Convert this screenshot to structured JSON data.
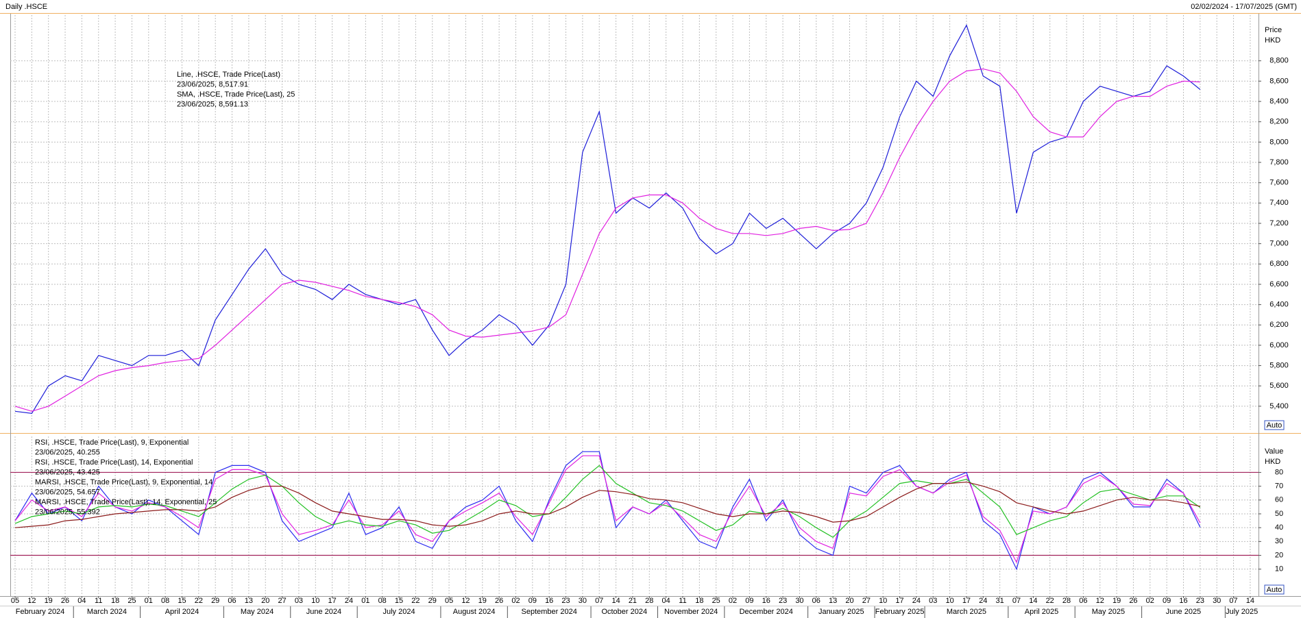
{
  "header": {
    "title": "Daily .HSCE",
    "range": "02/02/2024 - 17/07/2025 (GMT)"
  },
  "x_axis": {
    "groups": [
      {
        "label": "February 2024",
        "categories": [
          "05",
          "12",
          "19",
          "26"
        ]
      },
      {
        "label": "March 2024",
        "categories": [
          "04",
          "11",
          "18",
          "25"
        ]
      },
      {
        "label": "April 2024",
        "categories": [
          "01",
          "08",
          "15",
          "22",
          "29"
        ]
      },
      {
        "label": "May 2024",
        "categories": [
          "06",
          "13",
          "20",
          "27"
        ]
      },
      {
        "label": "June 2024",
        "categories": [
          "03",
          "10",
          "17",
          "24"
        ]
      },
      {
        "label": "July 2024",
        "categories": [
          "01",
          "08",
          "15",
          "22",
          "29"
        ]
      },
      {
        "label": "August 2024",
        "categories": [
          "05",
          "12",
          "19",
          "26"
        ]
      },
      {
        "label": "September 2024",
        "categories": [
          "02",
          "09",
          "16",
          "23",
          "30"
        ]
      },
      {
        "label": "October 2024",
        "categories": [
          "07",
          "14",
          "21",
          "28"
        ]
      },
      {
        "label": "November 2024",
        "categories": [
          "04",
          "11",
          "18",
          "25"
        ]
      },
      {
        "label": "December 2024",
        "categories": [
          "02",
          "09",
          "16",
          "23",
          "30"
        ]
      },
      {
        "label": "January 2025",
        "categories": [
          "06",
          "13",
          "20",
          "27"
        ]
      },
      {
        "label": "February 2025",
        "categories": [
          "10",
          "17",
          "24"
        ]
      },
      {
        "label": "March 2025",
        "categories": [
          "03",
          "10",
          "17",
          "24",
          "31"
        ]
      },
      {
        "label": "April 2025",
        "categories": [
          "07",
          "14",
          "22",
          "28"
        ]
      },
      {
        "label": "May 2025",
        "categories": [
          "06",
          "12",
          "19",
          "26"
        ]
      },
      {
        "label": "June 2025",
        "categories": [
          "02",
          "09",
          "16",
          "23",
          "30"
        ]
      },
      {
        "label": "July 2025",
        "categories": [
          "07",
          "14"
        ]
      }
    ]
  },
  "chart_data": [
    {
      "type": "line",
      "y_axis_label": "Price",
      "y_axis_unit": "HKD",
      "scale_button": "Auto",
      "ylim": [
        5170,
        9250
      ],
      "yticks": [
        {
          "value": 5400,
          "label": "5,400"
        },
        {
          "value": 5600,
          "label": "5,600"
        },
        {
          "value": 5800,
          "label": "5,800"
        },
        {
          "value": 6000,
          "label": "6,000"
        },
        {
          "value": 6200,
          "label": "6,200"
        },
        {
          "value": 6400,
          "label": "6,400"
        },
        {
          "value": 6600,
          "label": "6,600"
        },
        {
          "value": 6800,
          "label": "6,800"
        },
        {
          "value": 7000,
          "label": "7,000"
        },
        {
          "value": 7200,
          "label": "7,200"
        },
        {
          "value": 7400,
          "label": "7,400"
        },
        {
          "value": 7600,
          "label": "7,600"
        },
        {
          "value": 7800,
          "label": "7,800"
        },
        {
          "value": 8000,
          "label": "8,000"
        },
        {
          "value": 8200,
          "label": "8,200"
        },
        {
          "value": 8400,
          "label": "8,400"
        },
        {
          "value": 8600,
          "label": "8,600"
        },
        {
          "value": 8800,
          "label": "8,800"
        }
      ],
      "grid": true,
      "series": [
        {
          "name": "Line, .HSCE, Trade Price(Last)",
          "legend_detail": "23/06/2025, 8,517.91",
          "color": "#1c1cd8",
          "values": [
            5350,
            5330,
            5600,
            5700,
            5650,
            5900,
            5850,
            5800,
            5900,
            5900,
            5950,
            5800,
            6250,
            6500,
            6750,
            6950,
            6700,
            6600,
            6550,
            6450,
            6600,
            6500,
            6450,
            6400,
            6450,
            6150,
            5900,
            6050,
            6150,
            6300,
            6200,
            6000,
            6200,
            6600,
            7900,
            8300,
            7300,
            7450,
            7350,
            7500,
            7350,
            7050,
            6900,
            7000,
            7300,
            7150,
            7250,
            7100,
            6950,
            7100,
            7200,
            7400,
            7750,
            8250,
            8600,
            8450,
            8850,
            9150,
            8650,
            8550,
            7300,
            7900,
            8000,
            8050,
            8400,
            8550,
            8500,
            8450,
            8500,
            8750,
            8650,
            8517.91,
            null,
            null,
            null
          ]
        },
        {
          "name": "SMA, .HSCE, Trade Price(Last),  25",
          "legend_detail": "23/06/2025, 8,591.13",
          "color": "#e020e0",
          "values": [
            5400,
            5350,
            5400,
            5500,
            5600,
            5700,
            5750,
            5780,
            5800,
            5830,
            5850,
            5870,
            6000,
            6150,
            6300,
            6450,
            6600,
            6640,
            6620,
            6580,
            6540,
            6480,
            6450,
            6420,
            6380,
            6300,
            6150,
            6090,
            6080,
            6100,
            6120,
            6140,
            6180,
            6300,
            6700,
            7100,
            7350,
            7450,
            7480,
            7480,
            7400,
            7250,
            7150,
            7100,
            7100,
            7080,
            7100,
            7150,
            7170,
            7130,
            7140,
            7200,
            7500,
            7850,
            8150,
            8400,
            8600,
            8700,
            8720,
            8680,
            8500,
            8250,
            8100,
            8050,
            8050,
            8250,
            8400,
            8450,
            8450,
            8550,
            8600,
            8591.13,
            null,
            null,
            null
          ]
        }
      ]
    },
    {
      "type": "line",
      "y_axis_label": "Value",
      "y_axis_unit": "HKD",
      "scale_button": "Auto",
      "ylim": [
        -8,
        106
      ],
      "yticks": [
        10,
        20,
        30,
        40,
        50,
        60,
        70,
        80
      ],
      "reference_lines": [
        80,
        20
      ],
      "grid": true,
      "series": [
        {
          "name": "RSI, .HSCE, Trade Price(Last),  9, Exponential",
          "legend_detail": "23/06/2025, 40.255",
          "color": "#2a2af0",
          "values": [
            45,
            65,
            50,
            55,
            45,
            70,
            55,
            50,
            60,
            55,
            45,
            35,
            80,
            85,
            85,
            80,
            45,
            30,
            35,
            40,
            65,
            35,
            40,
            55,
            30,
            25,
            45,
            55,
            60,
            70,
            45,
            30,
            60,
            85,
            95,
            95,
            40,
            55,
            50,
            60,
            45,
            30,
            25,
            55,
            75,
            45,
            60,
            35,
            25,
            20,
            70,
            65,
            80,
            85,
            70,
            65,
            75,
            80,
            45,
            35,
            10,
            55,
            50,
            55,
            75,
            80,
            70,
            55,
            55,
            75,
            65,
            40.255,
            null,
            null,
            null
          ]
        },
        {
          "name": "RSI, .HSCE, Trade Price(Last),  14, Exponential",
          "legend_detail": "23/06/2025, 43.425",
          "color": "#e020e0",
          "values": [
            45,
            60,
            52,
            55,
            48,
            65,
            55,
            52,
            58,
            55,
            48,
            40,
            75,
            82,
            82,
            78,
            50,
            35,
            38,
            42,
            60,
            40,
            42,
            52,
            35,
            30,
            45,
            52,
            58,
            65,
            48,
            35,
            58,
            82,
            92,
            92,
            45,
            55,
            50,
            58,
            47,
            35,
            30,
            52,
            70,
            48,
            58,
            40,
            30,
            25,
            65,
            63,
            77,
            82,
            70,
            65,
            73,
            78,
            48,
            38,
            15,
            52,
            50,
            55,
            72,
            78,
            70,
            57,
            56,
            72,
            65,
            43.425,
            null,
            null,
            null
          ]
        },
        {
          "name": "MARSI, .HSCE, Trade Price(Last),  9, Exponential, 14",
          "legend_detail": "23/06/2025, 54.657",
          "color": "#22c022",
          "values": [
            43,
            48,
            50,
            52,
            50,
            55,
            56,
            55,
            57,
            56,
            52,
            48,
            58,
            68,
            75,
            78,
            70,
            58,
            48,
            42,
            45,
            42,
            41,
            45,
            42,
            36,
            38,
            45,
            52,
            60,
            56,
            48,
            50,
            62,
            75,
            85,
            72,
            65,
            58,
            56,
            52,
            45,
            38,
            42,
            52,
            50,
            54,
            48,
            40,
            33,
            45,
            52,
            62,
            72,
            74,
            72,
            72,
            75,
            65,
            55,
            35,
            40,
            45,
            48,
            58,
            66,
            68,
            64,
            60,
            63,
            63,
            54.657,
            null,
            null,
            null
          ]
        },
        {
          "name": "MARSI, .HSCE, Trade Price(Last),  14, Exponential, 25",
          "legend_detail": "23/06/2025, 55.392",
          "color": "#8b1a1a",
          "values": [
            40,
            41,
            42,
            45,
            46,
            48,
            50,
            51,
            52,
            53,
            53,
            52,
            55,
            62,
            67,
            70,
            70,
            65,
            58,
            52,
            50,
            48,
            46,
            46,
            45,
            42,
            41,
            42,
            45,
            50,
            52,
            50,
            50,
            55,
            62,
            67,
            66,
            64,
            61,
            60,
            58,
            54,
            50,
            48,
            50,
            50,
            52,
            51,
            48,
            44,
            45,
            48,
            55,
            62,
            68,
            72,
            72,
            73,
            70,
            66,
            58,
            55,
            52,
            50,
            52,
            56,
            60,
            62,
            60,
            60,
            58,
            55.392,
            null,
            null,
            null
          ]
        }
      ]
    }
  ]
}
